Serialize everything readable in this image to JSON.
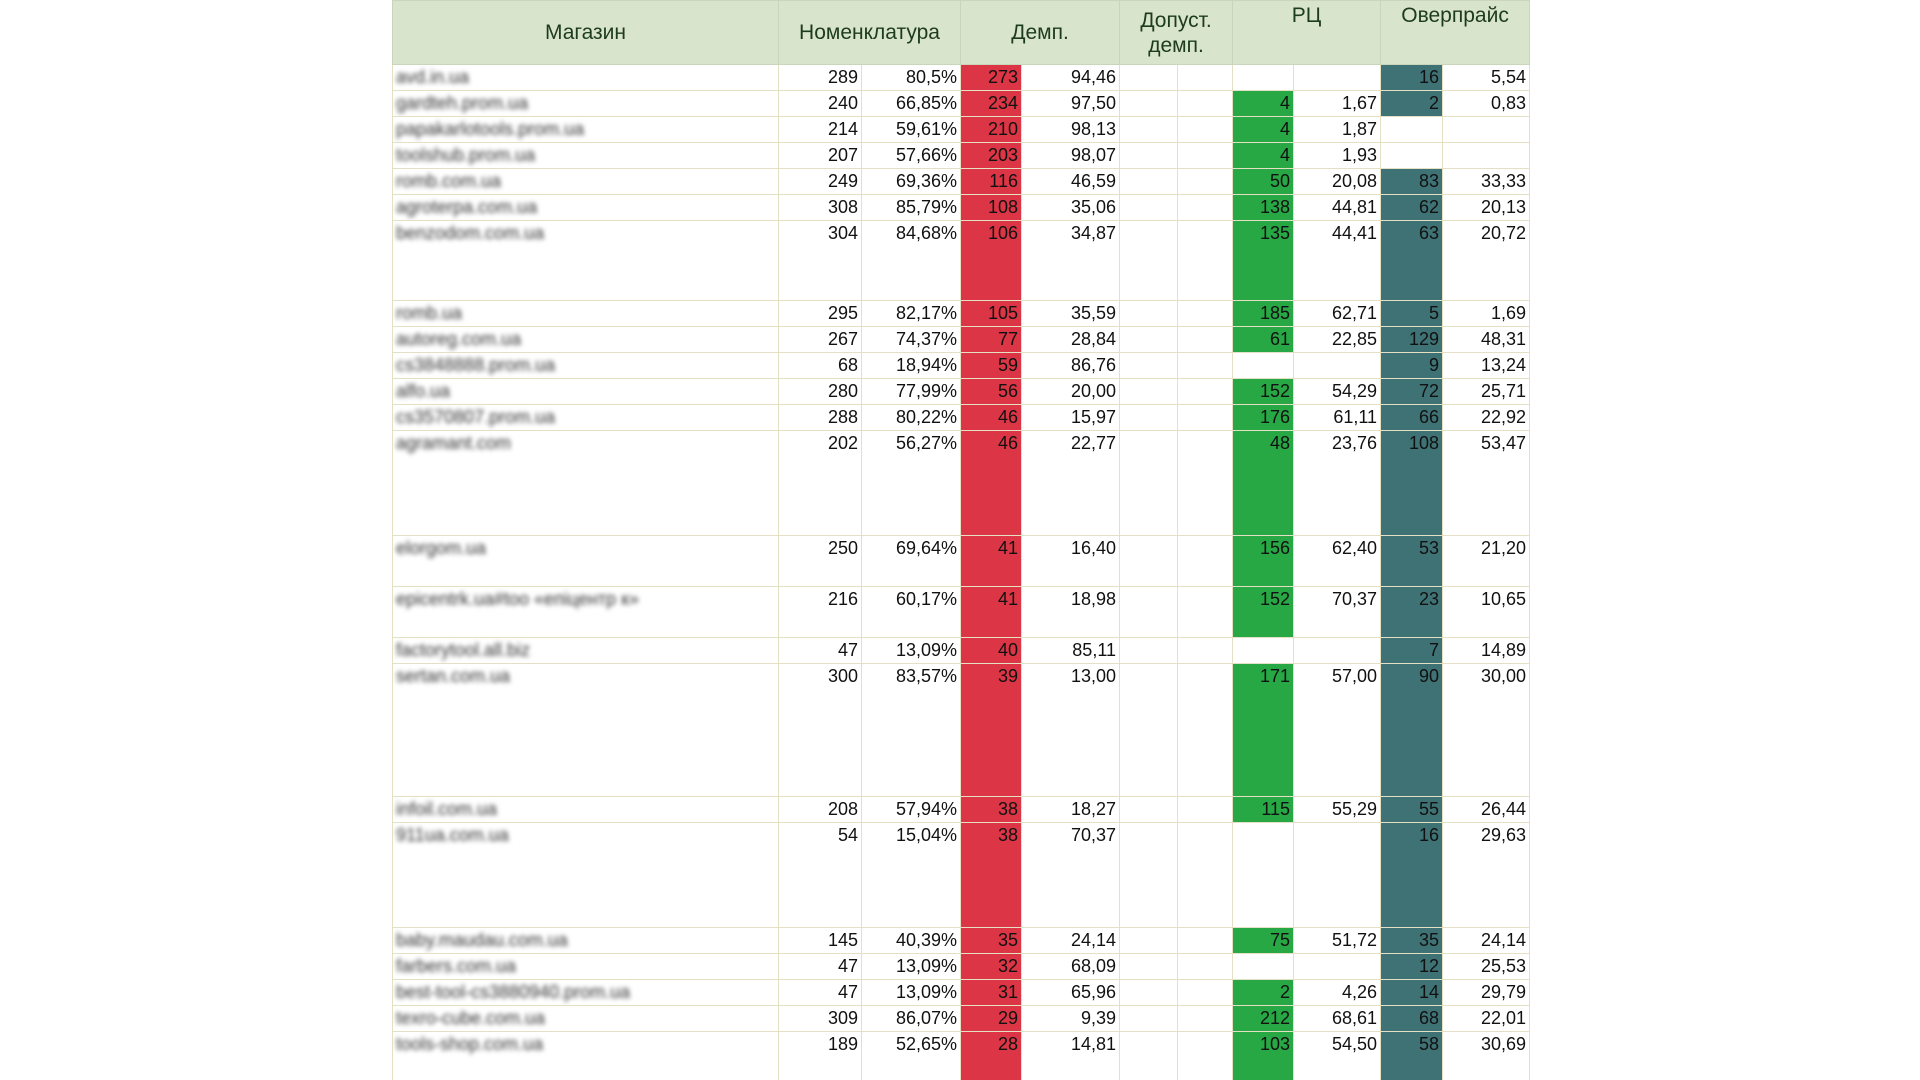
{
  "headers": {
    "store": "Магазин",
    "nomenclature": "Номенклатура",
    "dumping": "Демп.",
    "allowed_dumping": "Допуст. демп.",
    "rrp": "РЦ",
    "overprice": "Оверпрайс"
  },
  "colors": {
    "dumping": "#dc3545",
    "rrp": "#28a745",
    "overprice": "#3f7274",
    "header": "#d8e4cc"
  },
  "rows": [
    {
      "store": "avd.in.ua",
      "n": "289",
      "np": "80,5%",
      "d": "273",
      "dp": "94,46",
      "r": "",
      "rp": "",
      "o": "16",
      "op": "5,54",
      "lines": 1
    },
    {
      "store": "gardteh.prom.ua",
      "n": "240",
      "np": "66,85%",
      "d": "234",
      "dp": "97,50",
      "r": "4",
      "rp": "1,67",
      "o": "2",
      "op": "0,83",
      "lines": 1
    },
    {
      "store": "papakarlotools.prom.ua",
      "n": "214",
      "np": "59,61%",
      "d": "210",
      "dp": "98,13",
      "r": "4",
      "rp": "1,87",
      "o": "",
      "op": "",
      "lines": 1
    },
    {
      "store": "toolshub.prom.ua",
      "n": "207",
      "np": "57,66%",
      "d": "203",
      "dp": "98,07",
      "r": "4",
      "rp": "1,93",
      "o": "",
      "op": "",
      "lines": 1
    },
    {
      "store": "romb.com.ua",
      "n": "249",
      "np": "69,36%",
      "d": "116",
      "dp": "46,59",
      "r": "50",
      "rp": "20,08",
      "o": "83",
      "op": "33,33",
      "lines": 1
    },
    {
      "store": "agroterpa.com.ua",
      "n": "308",
      "np": "85,79%",
      "d": "108",
      "dp": "35,06",
      "r": "138",
      "rp": "44,81",
      "o": "62",
      "op": "20,13",
      "lines": 1
    },
    {
      "store": "benzodom.com.ua",
      "n": "304",
      "np": "84,68%",
      "d": "106",
      "dp": "34,87",
      "r": "135",
      "rp": "44,41",
      "o": "63",
      "op": "20,72",
      "lines": 3
    },
    {
      "store": "romb.ua",
      "n": "295",
      "np": "82,17%",
      "d": "105",
      "dp": "35,59",
      "r": "185",
      "rp": "62,71",
      "o": "5",
      "op": "1,69",
      "lines": 1
    },
    {
      "store": "autoreg.com.ua",
      "n": "267",
      "np": "74,37%",
      "d": "77",
      "dp": "28,84",
      "r": "61",
      "rp": "22,85",
      "o": "129",
      "op": "48,31",
      "lines": 1
    },
    {
      "store": "cs3848888.prom.ua",
      "n": "68",
      "np": "18,94%",
      "d": "59",
      "dp": "86,76",
      "r": "",
      "rp": "",
      "o": "9",
      "op": "13,24",
      "lines": 1
    },
    {
      "store": "alfo.ua",
      "n": "280",
      "np": "77,99%",
      "d": "56",
      "dp": "20,00",
      "r": "152",
      "rp": "54,29",
      "o": "72",
      "op": "25,71",
      "lines": 1
    },
    {
      "store": "cs3570807.prom.ua",
      "n": "288",
      "np": "80,22%",
      "d": "46",
      "dp": "15,97",
      "r": "176",
      "rp": "61,11",
      "o": "66",
      "op": "22,92",
      "lines": 1
    },
    {
      "store": "agramant.com",
      "n": "202",
      "np": "56,27%",
      "d": "46",
      "dp": "22,77",
      "r": "48",
      "rp": "23,76",
      "o": "108",
      "op": "53,47",
      "lines": 4
    },
    {
      "store": "elorgom.ua",
      "n": "250",
      "np": "69,64%",
      "d": "41",
      "dp": "16,40",
      "r": "156",
      "rp": "62,40",
      "o": "53",
      "op": "21,20",
      "lines": 2
    },
    {
      "store": "epicentrk.ua#too «епіцентр к»",
      "n": "216",
      "np": "60,17%",
      "d": "41",
      "dp": "18,98",
      "r": "152",
      "rp": "70,37",
      "o": "23",
      "op": "10,65",
      "lines": 2
    },
    {
      "store": "factorytool.all.biz",
      "n": "47",
      "np": "13,09%",
      "d": "40",
      "dp": "85,11",
      "r": "",
      "rp": "",
      "o": "7",
      "op": "14,89",
      "lines": 1
    },
    {
      "store": "sertan.com.ua",
      "n": "300",
      "np": "83,57%",
      "d": "39",
      "dp": "13,00",
      "r": "171",
      "rp": "57,00",
      "o": "90",
      "op": "30,00",
      "lines": 5
    },
    {
      "store": "infoil.com.ua",
      "n": "208",
      "np": "57,94%",
      "d": "38",
      "dp": "18,27",
      "r": "115",
      "rp": "55,29",
      "o": "55",
      "op": "26,44",
      "lines": 1
    },
    {
      "store": "911ua.com.ua",
      "n": "54",
      "np": "15,04%",
      "d": "38",
      "dp": "70,37",
      "r": "",
      "rp": "",
      "o": "16",
      "op": "29,63",
      "lines": 4
    },
    {
      "store": "baby.maudau.com.ua",
      "n": "145",
      "np": "40,39%",
      "d": "35",
      "dp": "24,14",
      "r": "75",
      "rp": "51,72",
      "o": "35",
      "op": "24,14",
      "lines": 1
    },
    {
      "store": "farbers.com.ua",
      "n": "47",
      "np": "13,09%",
      "d": "32",
      "dp": "68,09",
      "r": "",
      "rp": "",
      "o": "12",
      "op": "25,53",
      "lines": 1
    },
    {
      "store": "best-tool-cs3880940.prom.ua",
      "n": "47",
      "np": "13,09%",
      "d": "31",
      "dp": "65,96",
      "r": "2",
      "rp": "4,26",
      "o": "14",
      "op": "29,79",
      "lines": 1
    },
    {
      "store": "texro-cube.com.ua",
      "n": "309",
      "np": "86,07%",
      "d": "29",
      "dp": "9,39",
      "r": "212",
      "rp": "68,61",
      "o": "68",
      "op": "22,01",
      "lines": 1
    },
    {
      "store": "tools-shop.com.ua",
      "n": "189",
      "np": "52,65%",
      "d": "28",
      "dp": "14,81",
      "r": "103",
      "rp": "54,50",
      "o": "58",
      "op": "30,69",
      "lines": 2
    }
  ]
}
